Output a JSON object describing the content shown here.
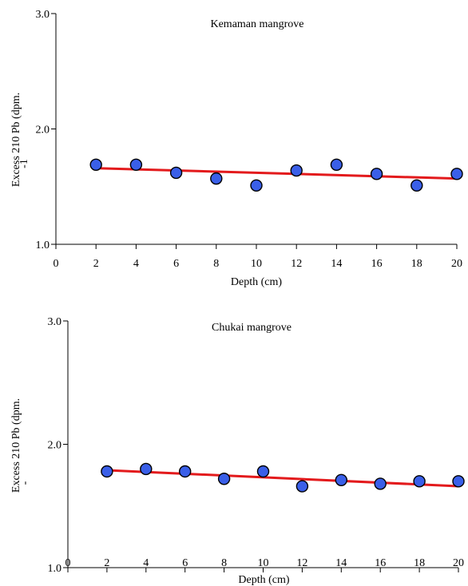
{
  "chart_data": [
    {
      "type": "scatter",
      "title": "Kemaman mangrove",
      "xlabel": "Depth (cm)",
      "ylabel": "Excess 210 Pb (dpm.",
      "ylabel_fragment": "-1",
      "xlim": [
        0,
        20
      ],
      "ylim": [
        1.0,
        3.0
      ],
      "xticks": [
        "0",
        "2",
        "4",
        "6",
        "8",
        "10",
        "12",
        "14",
        "16",
        "18",
        "20"
      ],
      "yticks": [
        "1.0",
        "2.0",
        "3.0"
      ],
      "series": [
        {
          "x": [
            2,
            4,
            6,
            8,
            10,
            12,
            14,
            16,
            18,
            20
          ],
          "y": [
            1.69,
            1.69,
            1.62,
            1.57,
            1.51,
            1.64,
            1.69,
            1.61,
            1.51,
            1.61
          ]
        }
      ],
      "trendline": {
        "x": [
          2,
          20
        ],
        "y": [
          1.66,
          1.57
        ]
      },
      "point_color": "#3a5fe8",
      "line_color": "#e31a1c",
      "grid": false
    },
    {
      "type": "scatter",
      "title": "Chukai mangrove",
      "xlabel": "Depth (cm)",
      "ylabel": "Excess 210 Pb (dpm.",
      "ylabel_fragment": "-",
      "xlim": [
        0,
        20
      ],
      "ylim": [
        1.0,
        3.0
      ],
      "xticks": [
        "0",
        "2",
        "4",
        "6",
        "8",
        "10",
        "12",
        "14",
        "16",
        "18",
        "20"
      ],
      "yticks": [
        "1.0",
        "2.0",
        "3.0"
      ],
      "series": [
        {
          "x": [
            2,
            4,
            6,
            8,
            10,
            12,
            14,
            16,
            18,
            20
          ],
          "y": [
            1.78,
            1.8,
            1.78,
            1.72,
            1.78,
            1.66,
            1.71,
            1.68,
            1.7,
            1.7
          ]
        }
      ],
      "trendline": {
        "x": [
          2,
          20
        ],
        "y": [
          1.79,
          1.66
        ]
      },
      "point_color": "#3a5fe8",
      "line_color": "#e31a1c",
      "grid": false
    }
  ]
}
